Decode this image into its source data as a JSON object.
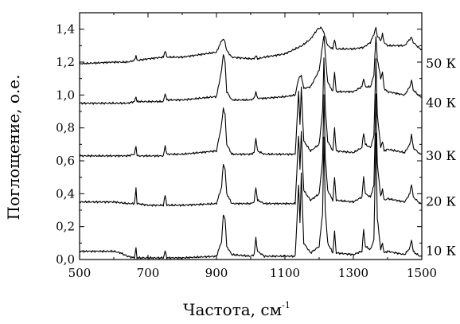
{
  "chart_data": {
    "type": "line",
    "xlabel": "Частота, см",
    "xlabel_sup": "-1",
    "ylabel": "Поглощение, о.е.",
    "xlim": [
      500,
      1500
    ],
    "ylim": [
      0.0,
      1.5
    ],
    "x_ticks": [
      500,
      700,
      900,
      1100,
      1300,
      1500
    ],
    "x_tick_labels": [
      "500",
      "700",
      "900",
      "1100",
      "1300",
      "1500"
    ],
    "y_ticks": [
      0.0,
      0.2,
      0.4,
      0.6,
      0.8,
      1.0,
      1.2,
      1.4
    ],
    "y_tick_labels": [
      "0,0",
      "0,2",
      "0,4",
      "0,6",
      "0,8",
      "1,0",
      "1,2",
      "1,4"
    ],
    "grid": false,
    "legend": "none",
    "series": [
      {
        "name": "10 К",
        "baseline": 0.05,
        "points": [
          [
            500,
            0.05
          ],
          [
            600,
            0.05
          ],
          [
            620,
            0.04
          ],
          [
            640,
            0.02
          ],
          [
            660,
            0.01
          ],
          [
            665,
            0.07
          ],
          [
            668,
            0.01
          ],
          [
            700,
            0.01
          ],
          [
            745,
            0.01
          ],
          [
            750,
            0.05
          ],
          [
            755,
            0.01
          ],
          [
            800,
            0.01
          ],
          [
            900,
            0.02
          ],
          [
            915,
            0.11
          ],
          [
            920,
            0.27
          ],
          [
            925,
            0.25
          ],
          [
            930,
            0.08
          ],
          [
            945,
            0.03
          ],
          [
            1000,
            0.02
          ],
          [
            1010,
            0.03
          ],
          [
            1015,
            0.13
          ],
          [
            1020,
            0.05
          ],
          [
            1040,
            0.02
          ],
          [
            1100,
            0.02
          ],
          [
            1130,
            0.02
          ],
          [
            1140,
            0.45
          ],
          [
            1144,
            0.22
          ],
          [
            1148,
            0.52
          ],
          [
            1155,
            0.1
          ],
          [
            1175,
            0.04
          ],
          [
            1200,
            0.08
          ],
          [
            1210,
            0.28
          ],
          [
            1214,
            0.75
          ],
          [
            1218,
            0.3
          ],
          [
            1225,
            0.1
          ],
          [
            1240,
            0.04
          ],
          [
            1245,
            0.17
          ],
          [
            1250,
            0.04
          ],
          [
            1300,
            0.03
          ],
          [
            1325,
            0.05
          ],
          [
            1330,
            0.18
          ],
          [
            1335,
            0.08
          ],
          [
            1350,
            0.06
          ],
          [
            1360,
            0.12
          ],
          [
            1366,
            0.77
          ],
          [
            1370,
            0.25
          ],
          [
            1380,
            0.06
          ],
          [
            1385,
            0.1
          ],
          [
            1390,
            0.04
          ],
          [
            1400,
            0.05
          ],
          [
            1450,
            0.03
          ],
          [
            1465,
            0.07
          ],
          [
            1470,
            0.12
          ],
          [
            1475,
            0.05
          ],
          [
            1480,
            0.04
          ],
          [
            1495,
            0.02
          ],
          [
            1500,
            0.02
          ]
        ]
      },
      {
        "name": "20 К",
        "baseline": 0.35,
        "points": [
          [
            500,
            0.35
          ],
          [
            600,
            0.35
          ],
          [
            640,
            0.34
          ],
          [
            660,
            0.34
          ],
          [
            665,
            0.43
          ],
          [
            668,
            0.34
          ],
          [
            700,
            0.33
          ],
          [
            745,
            0.33
          ],
          [
            750,
            0.39
          ],
          [
            755,
            0.33
          ],
          [
            800,
            0.33
          ],
          [
            900,
            0.34
          ],
          [
            915,
            0.44
          ],
          [
            920,
            0.58
          ],
          [
            925,
            0.55
          ],
          [
            930,
            0.4
          ],
          [
            945,
            0.34
          ],
          [
            1000,
            0.34
          ],
          [
            1010,
            0.35
          ],
          [
            1015,
            0.44
          ],
          [
            1020,
            0.36
          ],
          [
            1040,
            0.34
          ],
          [
            1100,
            0.34
          ],
          [
            1130,
            0.34
          ],
          [
            1140,
            0.75
          ],
          [
            1144,
            0.55
          ],
          [
            1148,
            0.78
          ],
          [
            1155,
            0.42
          ],
          [
            1175,
            0.36
          ],
          [
            1200,
            0.4
          ],
          [
            1210,
            0.6
          ],
          [
            1214,
            1.0
          ],
          [
            1218,
            0.62
          ],
          [
            1225,
            0.42
          ],
          [
            1240,
            0.36
          ],
          [
            1245,
            0.5
          ],
          [
            1250,
            0.36
          ],
          [
            1300,
            0.35
          ],
          [
            1325,
            0.38
          ],
          [
            1330,
            0.5
          ],
          [
            1335,
            0.4
          ],
          [
            1350,
            0.38
          ],
          [
            1360,
            0.45
          ],
          [
            1366,
            1.0
          ],
          [
            1370,
            0.58
          ],
          [
            1380,
            0.38
          ],
          [
            1385,
            0.43
          ],
          [
            1390,
            0.36
          ],
          [
            1400,
            0.37
          ],
          [
            1450,
            0.35
          ],
          [
            1465,
            0.4
          ],
          [
            1470,
            0.46
          ],
          [
            1475,
            0.38
          ],
          [
            1480,
            0.37
          ],
          [
            1495,
            0.34
          ],
          [
            1500,
            0.34
          ]
        ]
      },
      {
        "name": "30 К",
        "baseline": 0.63,
        "points": [
          [
            500,
            0.63
          ],
          [
            600,
            0.63
          ],
          [
            640,
            0.63
          ],
          [
            660,
            0.64
          ],
          [
            665,
            0.69
          ],
          [
            668,
            0.63
          ],
          [
            700,
            0.63
          ],
          [
            745,
            0.63
          ],
          [
            750,
            0.69
          ],
          [
            755,
            0.64
          ],
          [
            800,
            0.64
          ],
          [
            900,
            0.66
          ],
          [
            915,
            0.82
          ],
          [
            920,
            0.92
          ],
          [
            925,
            0.88
          ],
          [
            930,
            0.7
          ],
          [
            945,
            0.64
          ],
          [
            1000,
            0.64
          ],
          [
            1010,
            0.65
          ],
          [
            1015,
            0.74
          ],
          [
            1020,
            0.66
          ],
          [
            1040,
            0.64
          ],
          [
            1100,
            0.64
          ],
          [
            1130,
            0.64
          ],
          [
            1140,
            1.02
          ],
          [
            1144,
            0.82
          ],
          [
            1148,
            1.05
          ],
          [
            1155,
            0.72
          ],
          [
            1175,
            0.66
          ],
          [
            1200,
            0.7
          ],
          [
            1210,
            0.9
          ],
          [
            1214,
            1.22
          ],
          [
            1218,
            0.92
          ],
          [
            1225,
            0.72
          ],
          [
            1240,
            0.66
          ],
          [
            1245,
            0.8
          ],
          [
            1250,
            0.66
          ],
          [
            1300,
            0.65
          ],
          [
            1325,
            0.68
          ],
          [
            1330,
            0.77
          ],
          [
            1335,
            0.7
          ],
          [
            1350,
            0.68
          ],
          [
            1360,
            0.75
          ],
          [
            1366,
            1.22
          ],
          [
            1370,
            0.88
          ],
          [
            1380,
            0.68
          ],
          [
            1385,
            0.72
          ],
          [
            1390,
            0.66
          ],
          [
            1400,
            0.67
          ],
          [
            1450,
            0.65
          ],
          [
            1465,
            0.7
          ],
          [
            1470,
            0.76
          ],
          [
            1475,
            0.68
          ],
          [
            1480,
            0.67
          ],
          [
            1495,
            0.64
          ],
          [
            1500,
            0.64
          ]
        ]
      },
      {
        "name": "40 К",
        "baseline": 0.95,
        "points": [
          [
            500,
            0.95
          ],
          [
            600,
            0.95
          ],
          [
            640,
            0.95
          ],
          [
            660,
            0.96
          ],
          [
            665,
            0.99
          ],
          [
            668,
            0.96
          ],
          [
            700,
            0.96
          ],
          [
            745,
            0.96
          ],
          [
            750,
            1.01
          ],
          [
            755,
            0.97
          ],
          [
            800,
            0.97
          ],
          [
            900,
            0.99
          ],
          [
            915,
            1.15
          ],
          [
            920,
            1.25
          ],
          [
            925,
            1.2
          ],
          [
            930,
            1.02
          ],
          [
            945,
            0.97
          ],
          [
            1000,
            0.97
          ],
          [
            1010,
            0.98
          ],
          [
            1015,
            1.02
          ],
          [
            1020,
            0.98
          ],
          [
            1040,
            0.98
          ],
          [
            1100,
            0.99
          ],
          [
            1130,
            1.0
          ],
          [
            1140,
            1.1
          ],
          [
            1148,
            1.12
          ],
          [
            1155,
            1.04
          ],
          [
            1175,
            1.05
          ],
          [
            1200,
            1.15
          ],
          [
            1210,
            1.3
          ],
          [
            1214,
            1.36
          ],
          [
            1218,
            1.25
          ],
          [
            1225,
            1.08
          ],
          [
            1240,
            1.02
          ],
          [
            1245,
            1.14
          ],
          [
            1250,
            1.02
          ],
          [
            1300,
            1.02
          ],
          [
            1325,
            1.05
          ],
          [
            1330,
            1.1
          ],
          [
            1335,
            1.05
          ],
          [
            1350,
            1.05
          ],
          [
            1360,
            1.12
          ],
          [
            1366,
            1.36
          ],
          [
            1370,
            1.22
          ],
          [
            1380,
            1.1
          ],
          [
            1385,
            1.14
          ],
          [
            1390,
            1.04
          ],
          [
            1400,
            1.02
          ],
          [
            1450,
            1.0
          ],
          [
            1465,
            1.05
          ],
          [
            1470,
            1.09
          ],
          [
            1475,
            1.03
          ],
          [
            1480,
            1.02
          ],
          [
            1495,
            0.99
          ],
          [
            1500,
            0.99
          ]
        ]
      },
      {
        "name": "50 К",
        "baseline": 1.19,
        "points": [
          [
            500,
            1.19
          ],
          [
            600,
            1.2
          ],
          [
            640,
            1.2
          ],
          [
            660,
            1.21
          ],
          [
            665,
            1.24
          ],
          [
            668,
            1.21
          ],
          [
            700,
            1.22
          ],
          [
            745,
            1.23
          ],
          [
            750,
            1.27
          ],
          [
            755,
            1.23
          ],
          [
            800,
            1.23
          ],
          [
            900,
            1.26
          ],
          [
            915,
            1.33
          ],
          [
            920,
            1.34
          ],
          [
            925,
            1.32
          ],
          [
            930,
            1.27
          ],
          [
            945,
            1.23
          ],
          [
            1000,
            1.22
          ],
          [
            1010,
            1.22
          ],
          [
            1015,
            1.24
          ],
          [
            1020,
            1.22
          ],
          [
            1040,
            1.23
          ],
          [
            1100,
            1.25
          ],
          [
            1130,
            1.28
          ],
          [
            1150,
            1.3
          ],
          [
            1175,
            1.34
          ],
          [
            1195,
            1.4
          ],
          [
            1205,
            1.41
          ],
          [
            1214,
            1.38
          ],
          [
            1225,
            1.3
          ],
          [
            1240,
            1.28
          ],
          [
            1245,
            1.34
          ],
          [
            1250,
            1.28
          ],
          [
            1300,
            1.28
          ],
          [
            1330,
            1.29
          ],
          [
            1350,
            1.32
          ],
          [
            1360,
            1.37
          ],
          [
            1366,
            1.41
          ],
          [
            1370,
            1.36
          ],
          [
            1380,
            1.33
          ],
          [
            1385,
            1.37
          ],
          [
            1390,
            1.32
          ],
          [
            1400,
            1.3
          ],
          [
            1450,
            1.3
          ],
          [
            1465,
            1.34
          ],
          [
            1470,
            1.35
          ],
          [
            1475,
            1.32
          ],
          [
            1480,
            1.31
          ],
          [
            1495,
            1.28
          ],
          [
            1500,
            1.28
          ]
        ]
      }
    ]
  }
}
